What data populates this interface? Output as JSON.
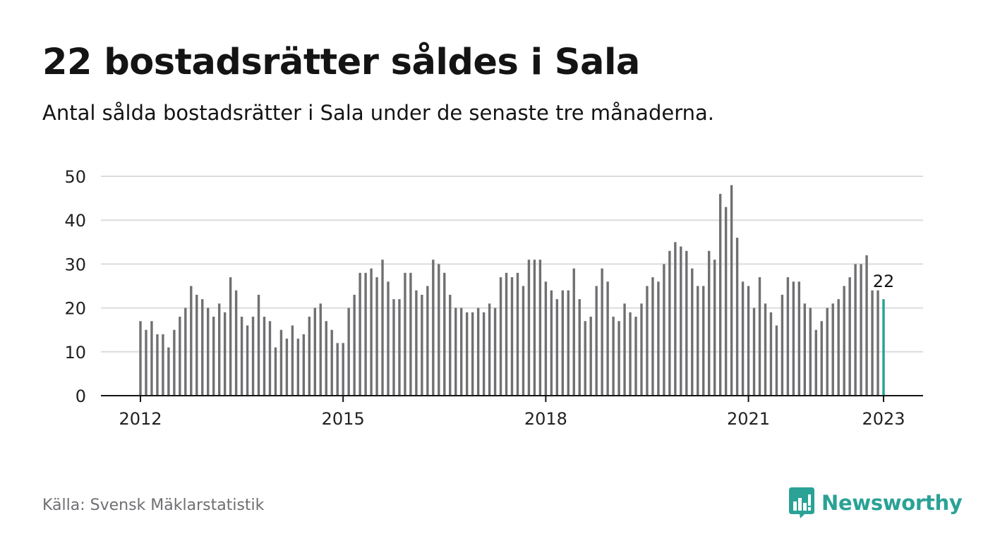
{
  "title": "22 bostadsrätter såldes i Sala",
  "subtitle": "Antal sålda bostadsrätter i Sala under de senaste tre månaderna.",
  "source": "Källa: Svensk Mäklarstatistik",
  "brand": {
    "name": "Newsworthy",
    "icon": "newsworthy-logo-icon"
  },
  "colors": {
    "bar": "#707073",
    "highlight": "#26a196",
    "grid": "#dcdcdc",
    "axis": "#141414",
    "brand": "#2aa296"
  },
  "chart_data": {
    "type": "bar",
    "title": "22 bostadsrätter såldes i Sala",
    "xlabel": "",
    "ylabel": "",
    "ylim": [
      0,
      50
    ],
    "yticks": [
      0,
      10,
      20,
      30,
      40,
      50
    ],
    "xticks": [
      "2012",
      "2015",
      "2018",
      "2021",
      "2023"
    ],
    "grid": true,
    "legend": "none",
    "highlight": {
      "x": "2023-01",
      "value": 22,
      "label": "22"
    },
    "x": [
      "2012-01",
      "2012-02",
      "2012-03",
      "2012-04",
      "2012-05",
      "2012-06",
      "2012-07",
      "2012-08",
      "2012-09",
      "2012-10",
      "2012-11",
      "2012-12",
      "2013-01",
      "2013-02",
      "2013-03",
      "2013-04",
      "2013-05",
      "2013-06",
      "2013-07",
      "2013-08",
      "2013-09",
      "2013-10",
      "2013-11",
      "2013-12",
      "2014-01",
      "2014-02",
      "2014-03",
      "2014-04",
      "2014-05",
      "2014-06",
      "2014-07",
      "2014-08",
      "2014-09",
      "2014-10",
      "2014-11",
      "2014-12",
      "2015-01",
      "2015-02",
      "2015-03",
      "2015-04",
      "2015-05",
      "2015-06",
      "2015-07",
      "2015-08",
      "2015-09",
      "2015-10",
      "2015-11",
      "2015-12",
      "2016-01",
      "2016-02",
      "2016-03",
      "2016-04",
      "2016-05",
      "2016-06",
      "2016-07",
      "2016-08",
      "2016-09",
      "2016-10",
      "2016-11",
      "2016-12",
      "2017-01",
      "2017-02",
      "2017-03",
      "2017-04",
      "2017-05",
      "2017-06",
      "2017-07",
      "2017-08",
      "2017-09",
      "2017-10",
      "2017-11",
      "2017-12",
      "2018-01",
      "2018-02",
      "2018-03",
      "2018-04",
      "2018-05",
      "2018-06",
      "2018-07",
      "2018-08",
      "2018-09",
      "2018-10",
      "2018-11",
      "2018-12",
      "2019-01",
      "2019-02",
      "2019-03",
      "2019-04",
      "2019-05",
      "2019-06",
      "2019-07",
      "2019-08",
      "2019-09",
      "2019-10",
      "2019-11",
      "2019-12",
      "2020-01",
      "2020-02",
      "2020-03",
      "2020-04",
      "2020-05",
      "2020-06",
      "2020-07",
      "2020-08",
      "2020-09",
      "2020-10",
      "2020-11",
      "2020-12",
      "2021-01",
      "2021-02",
      "2021-03",
      "2021-04",
      "2021-05",
      "2021-06",
      "2021-07",
      "2021-08",
      "2021-09",
      "2021-10",
      "2021-11",
      "2021-12",
      "2022-01",
      "2022-02",
      "2022-03",
      "2022-04",
      "2022-05",
      "2022-06",
      "2022-07",
      "2022-08",
      "2022-09",
      "2022-10",
      "2022-11",
      "2022-12",
      "2023-01"
    ],
    "values": [
      17,
      15,
      17,
      14,
      14,
      11,
      15,
      18,
      20,
      25,
      23,
      22,
      20,
      18,
      21,
      19,
      27,
      24,
      18,
      16,
      18,
      23,
      18,
      17,
      11,
      15,
      13,
      16,
      13,
      14,
      18,
      20,
      21,
      17,
      15,
      12,
      12,
      20,
      23,
      28,
      28,
      29,
      27,
      31,
      26,
      22,
      22,
      28,
      28,
      24,
      23,
      25,
      31,
      30,
      28,
      23,
      20,
      20,
      19,
      19,
      20,
      19,
      21,
      20,
      27,
      28,
      27,
      28,
      25,
      31,
      31,
      31,
      26,
      24,
      22,
      24,
      24,
      29,
      22,
      17,
      18,
      25,
      29,
      26,
      18,
      17,
      21,
      19,
      18,
      21,
      25,
      27,
      26,
      30,
      33,
      35,
      34,
      33,
      29,
      25,
      25,
      33,
      31,
      46,
      43,
      48,
      36,
      26,
      25,
      20,
      27,
      21,
      19,
      16,
      23,
      27,
      26,
      26,
      21,
      20,
      15,
      17,
      20,
      21,
      22,
      25,
      27,
      30,
      30,
      32,
      24,
      24,
      22
    ]
  }
}
